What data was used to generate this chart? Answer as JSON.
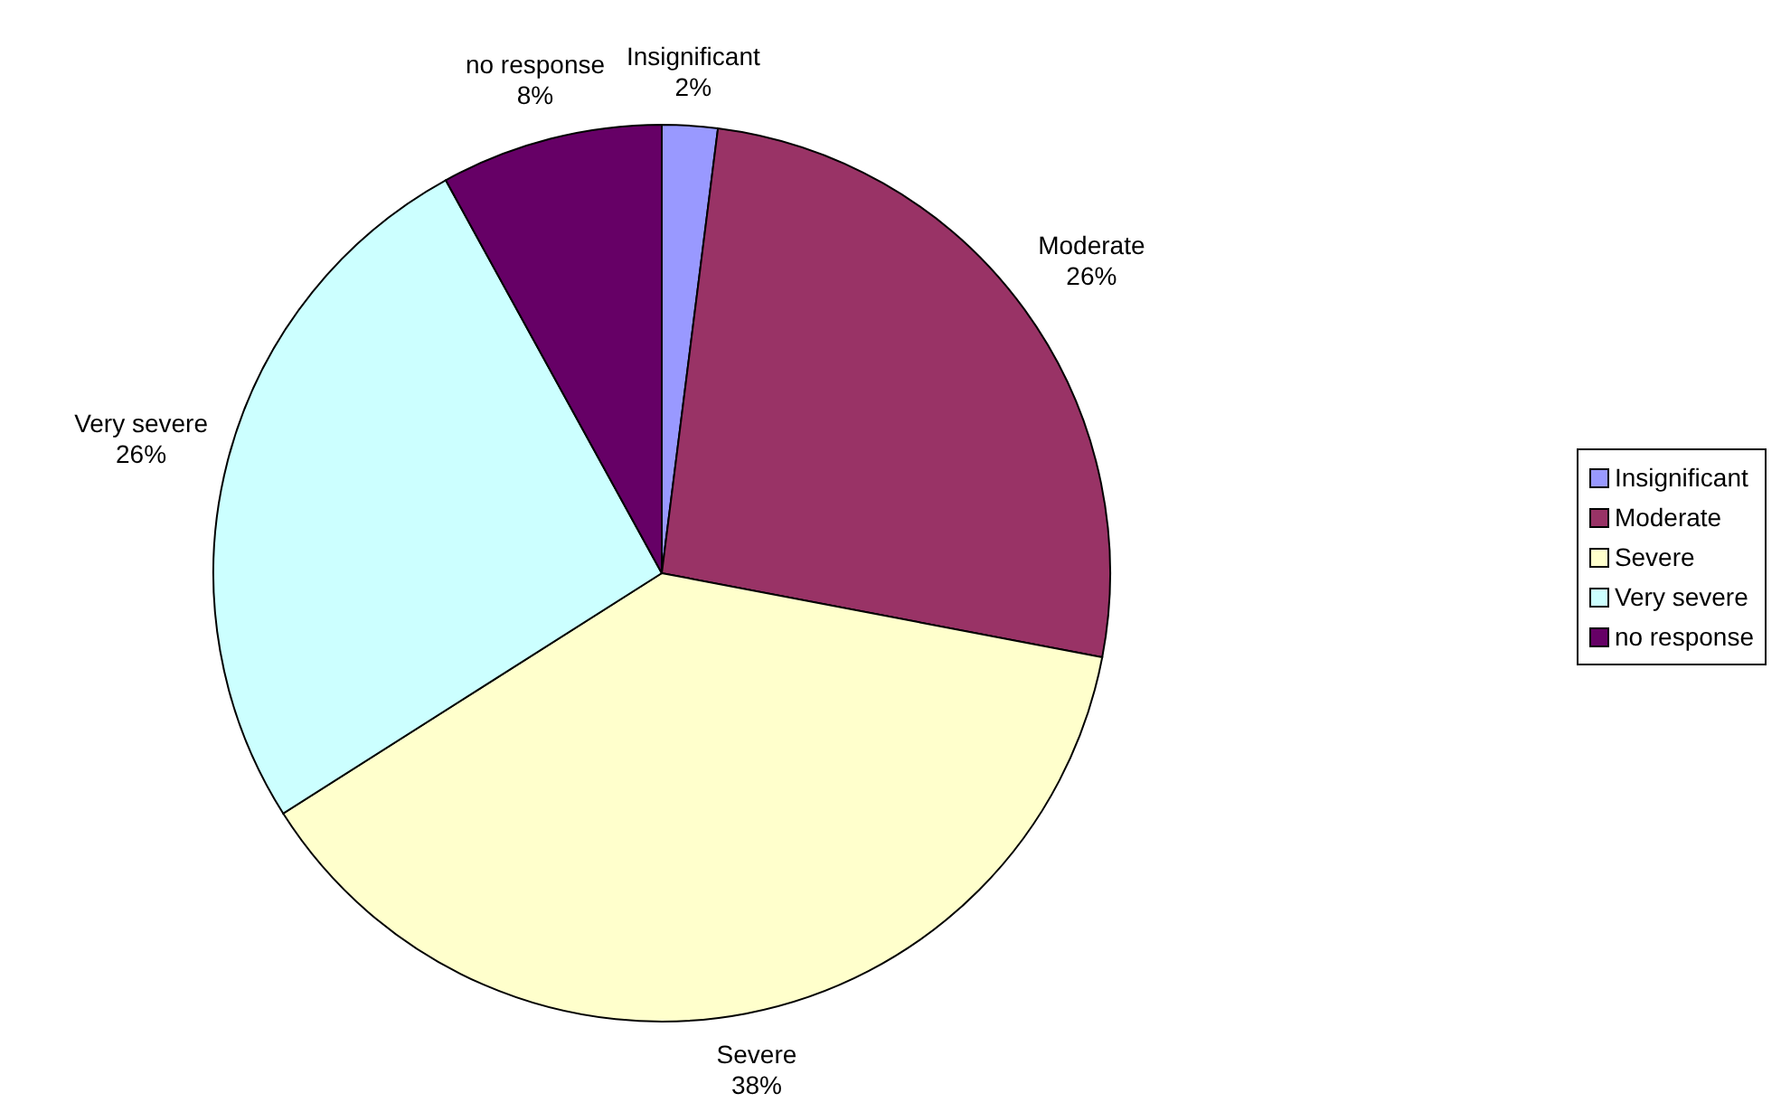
{
  "chart_data": {
    "type": "pie",
    "categories": [
      "Insignificant",
      "Moderate",
      "Severe",
      "Very severe",
      "no response"
    ],
    "values": [
      2,
      26,
      38,
      26,
      8
    ],
    "colors": [
      "#9999ff",
      "#993366",
      "#ffffcc",
      "#ccffff",
      "#660066"
    ],
    "value_labels": [
      "2%",
      "26%",
      "38%",
      "26%",
      "8%"
    ],
    "legend": "right"
  }
}
